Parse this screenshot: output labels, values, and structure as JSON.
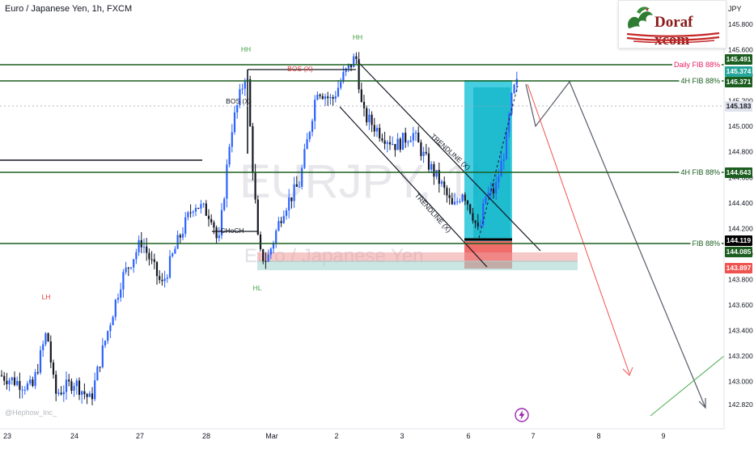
{
  "header": {
    "title": "Euro / Japanese Yen, 1h, FXCM"
  },
  "logo": {
    "text": "Doraf xcom",
    "icon": "dragon-logo-icon",
    "accent": "#8b1a1a"
  },
  "credit": "@Hephow_Inc_",
  "watermark": {
    "symbol": "EURJPY, 1h",
    "name": "Euro / Japanese Yen"
  },
  "chart_data": {
    "type": "candlestick",
    "price_scale_title": "JPY",
    "ylim": [
      142.7,
      145.9
    ],
    "y_ticks": [
      "145.800",
      "145.600",
      "145.400",
      "145.200",
      "145.000",
      "144.800",
      "144.600",
      "144.400",
      "144.200",
      "144.000",
      "143.800",
      "143.600",
      "143.400",
      "143.200",
      "143.000",
      "142.820"
    ],
    "x_ticks": [
      "23",
      "24",
      "27",
      "28",
      "Mar",
      "2",
      "3",
      "6",
      "7",
      "8",
      "9"
    ],
    "grid": false,
    "levels": [
      {
        "label": "Daily FIB 88%",
        "price": 145.491,
        "color": "#1b5e20",
        "tag_color": "#e91e63"
      },
      {
        "label": "4H FIB 88%",
        "price": 145.371,
        "color": "#1b5e20",
        "tag_color": "#1b5e20"
      },
      {
        "label": "4H FIB 88%",
        "price": 144.643,
        "color": "#1b5e20",
        "tag_color": "#1b5e20"
      },
      {
        "label": "FIB 88%",
        "price": 144.085,
        "color": "#1b5e20",
        "tag_color": "#1b5e20"
      }
    ],
    "price_tags": [
      {
        "value": "145.491",
        "bg": "#1b5e20",
        "fg": "#ffffff"
      },
      {
        "value": "145.374",
        "bg": "#26a69a",
        "fg": "#ffffff"
      },
      {
        "value": "145.371",
        "bg": "#1b5e20",
        "fg": "#ffffff"
      },
      {
        "value": "145.183",
        "bg": "#e0e3eb",
        "fg": "#131722"
      },
      {
        "value": "144.643",
        "bg": "#1b5e20",
        "fg": "#ffffff"
      },
      {
        "value": "144.119",
        "bg": "#000000",
        "fg": "#ffffff"
      },
      {
        "value": "144.085",
        "bg": "#1b5e20",
        "fg": "#ffffff"
      },
      {
        "value": "143.897",
        "bg": "#ef5350",
        "fg": "#ffffff"
      }
    ],
    "annotations": [
      {
        "text": "HH",
        "color": "#43a047"
      },
      {
        "text": "HH",
        "color": "#43a047"
      },
      {
        "text": "BOS (X)",
        "color": "#e53935"
      },
      {
        "text": "BOS (X)",
        "color": "#131722"
      },
      {
        "text": "CHoCH",
        "color": "#131722"
      },
      {
        "text": "HL",
        "color": "#43a047"
      },
      {
        "text": "LH",
        "color": "#e53935"
      },
      {
        "text": "TRENDLINE (X)",
        "color": "#131722"
      },
      {
        "text": "TRENDLINE (X)",
        "color": "#131722"
      }
    ],
    "colors": {
      "up": "#2962ff",
      "down": "#131722",
      "zone": "#00bcd4",
      "stop": "#ef5350"
    }
  }
}
